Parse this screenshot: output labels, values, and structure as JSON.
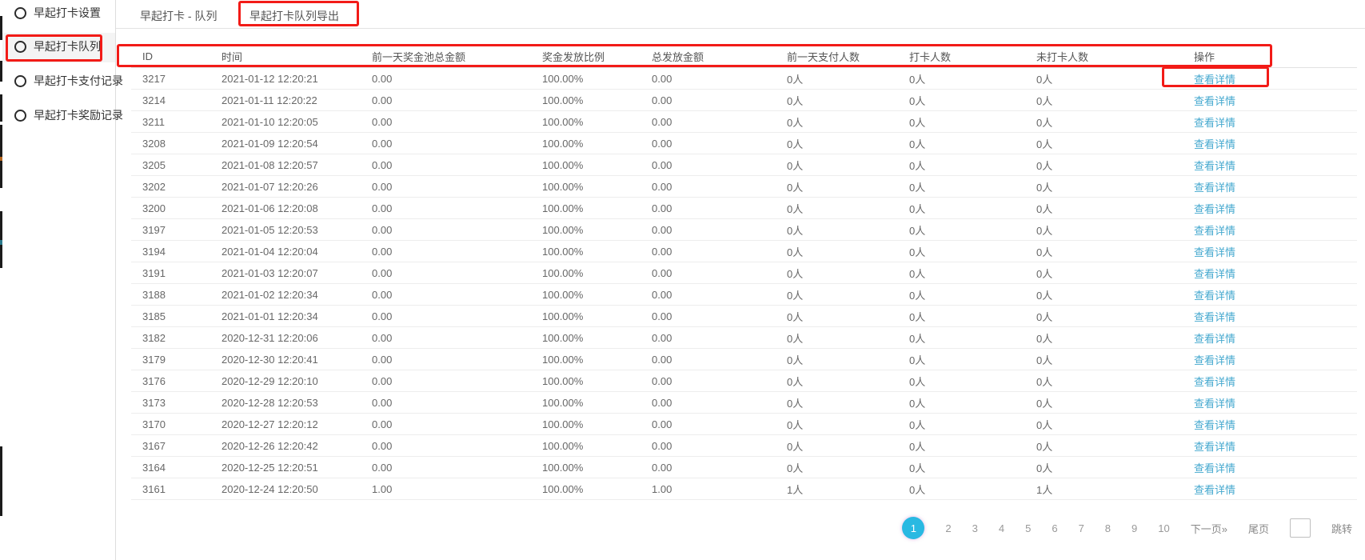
{
  "colors": {
    "annotation_red": "#f21b17",
    "link_blue": "#44a8cf",
    "pagination_active": "#29b9e2"
  },
  "sidebar": {
    "items": [
      {
        "label": "早起打卡设置",
        "selected": false
      },
      {
        "label": "早起打卡队列",
        "selected": true
      },
      {
        "label": "早起打卡支付记录",
        "selected": false
      },
      {
        "label": "早起打卡奖励记录",
        "selected": false
      }
    ]
  },
  "tabs": [
    {
      "label": "早起打卡 - 队列",
      "active": false
    },
    {
      "label": "早起打卡队列导出",
      "active": true
    }
  ],
  "table": {
    "columns": [
      "ID",
      "时间",
      "前一天奖金池总金额",
      "奖金发放比例",
      "总发放金额",
      "前一天支付人数",
      "打卡人数",
      "未打卡人数",
      "操作"
    ],
    "action_label": "查看详情",
    "rows": [
      [
        "3217",
        "2021-01-12 12:20:21",
        "0.00",
        "100.00%",
        "0.00",
        "0人",
        "0人",
        "0人"
      ],
      [
        "3214",
        "2021-01-11 12:20:22",
        "0.00",
        "100.00%",
        "0.00",
        "0人",
        "0人",
        "0人"
      ],
      [
        "3211",
        "2021-01-10 12:20:05",
        "0.00",
        "100.00%",
        "0.00",
        "0人",
        "0人",
        "0人"
      ],
      [
        "3208",
        "2021-01-09 12:20:54",
        "0.00",
        "100.00%",
        "0.00",
        "0人",
        "0人",
        "0人"
      ],
      [
        "3205",
        "2021-01-08 12:20:57",
        "0.00",
        "100.00%",
        "0.00",
        "0人",
        "0人",
        "0人"
      ],
      [
        "3202",
        "2021-01-07 12:20:26",
        "0.00",
        "100.00%",
        "0.00",
        "0人",
        "0人",
        "0人"
      ],
      [
        "3200",
        "2021-01-06 12:20:08",
        "0.00",
        "100.00%",
        "0.00",
        "0人",
        "0人",
        "0人"
      ],
      [
        "3197",
        "2021-01-05 12:20:53",
        "0.00",
        "100.00%",
        "0.00",
        "0人",
        "0人",
        "0人"
      ],
      [
        "3194",
        "2021-01-04 12:20:04",
        "0.00",
        "100.00%",
        "0.00",
        "0人",
        "0人",
        "0人"
      ],
      [
        "3191",
        "2021-01-03 12:20:07",
        "0.00",
        "100.00%",
        "0.00",
        "0人",
        "0人",
        "0人"
      ],
      [
        "3188",
        "2021-01-02 12:20:34",
        "0.00",
        "100.00%",
        "0.00",
        "0人",
        "0人",
        "0人"
      ],
      [
        "3185",
        "2021-01-01 12:20:34",
        "0.00",
        "100.00%",
        "0.00",
        "0人",
        "0人",
        "0人"
      ],
      [
        "3182",
        "2020-12-31 12:20:06",
        "0.00",
        "100.00%",
        "0.00",
        "0人",
        "0人",
        "0人"
      ],
      [
        "3179",
        "2020-12-30 12:20:41",
        "0.00",
        "100.00%",
        "0.00",
        "0人",
        "0人",
        "0人"
      ],
      [
        "3176",
        "2020-12-29 12:20:10",
        "0.00",
        "100.00%",
        "0.00",
        "0人",
        "0人",
        "0人"
      ],
      [
        "3173",
        "2020-12-28 12:20:53",
        "0.00",
        "100.00%",
        "0.00",
        "0人",
        "0人",
        "0人"
      ],
      [
        "3170",
        "2020-12-27 12:20:12",
        "0.00",
        "100.00%",
        "0.00",
        "0人",
        "0人",
        "0人"
      ],
      [
        "3167",
        "2020-12-26 12:20:42",
        "0.00",
        "100.00%",
        "0.00",
        "0人",
        "0人",
        "0人"
      ],
      [
        "3164",
        "2020-12-25 12:20:51",
        "0.00",
        "100.00%",
        "0.00",
        "0人",
        "0人",
        "0人"
      ],
      [
        "3161",
        "2020-12-24 12:20:50",
        "1.00",
        "100.00%",
        "1.00",
        "1人",
        "0人",
        "1人"
      ]
    ]
  },
  "pagination": {
    "active_page": "1",
    "other_pages": [
      "2",
      "3",
      "4",
      "5",
      "6",
      "7",
      "8",
      "9",
      "10"
    ],
    "next_label": "下一页»",
    "last_label": "尾页",
    "jump_label": "跳转",
    "jump_value": ""
  }
}
